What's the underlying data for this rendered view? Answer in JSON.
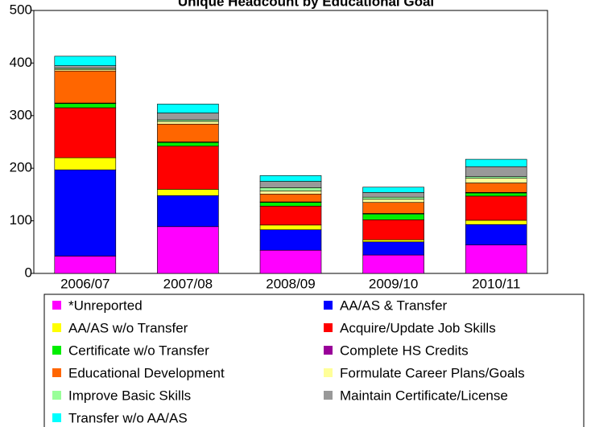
{
  "chart_data": {
    "type": "stacked_bar",
    "title": "Unique Headcount by Educational Goal",
    "categories": [
      "2006/07",
      "2007/08",
      "2008/09",
      "2009/10",
      "2010/11"
    ],
    "ylim": [
      0,
      500
    ],
    "yticks": [
      0,
      100,
      200,
      300,
      400,
      500
    ],
    "series": [
      {
        "name": "*Unreported",
        "color": "#ff00ff",
        "values": [
          33,
          89,
          44,
          35,
          54
        ]
      },
      {
        "name": "AA/AS & Transfer",
        "color": "#0000ff",
        "values": [
          164,
          59,
          39,
          25,
          39
        ]
      },
      {
        "name": "AA/AS w/o Transfer",
        "color": "#ffff00",
        "values": [
          23,
          12,
          9,
          4,
          8
        ]
      },
      {
        "name": "Acquire/Update Job Skills",
        "color": "#ff0000",
        "values": [
          95,
          82,
          36,
          38,
          46
        ]
      },
      {
        "name": "Certificate w/o Transfer",
        "color": "#00ee00",
        "values": [
          8,
          7,
          7,
          11,
          6
        ]
      },
      {
        "name": "Complete HS Credits",
        "color": "#990099",
        "values": [
          1,
          1,
          1,
          1,
          1
        ]
      },
      {
        "name": "Educational Development",
        "color": "#ff6600",
        "values": [
          61,
          34,
          15,
          21,
          18
        ]
      },
      {
        "name": "Formulate Career Plans/Goals",
        "color": "#ffff99",
        "values": [
          3,
          5,
          6,
          6,
          9
        ]
      },
      {
        "name": "Improve Basic Skills",
        "color": "#99ff99",
        "values": [
          2,
          3,
          6,
          4,
          3
        ]
      },
      {
        "name": "Maintain Certificate/License",
        "color": "#999999",
        "values": [
          5,
          13,
          12,
          9,
          19
        ]
      },
      {
        "name": "Transfer w/o AA/AS",
        "color": "#00ffff",
        "values": [
          18,
          17,
          11,
          10,
          14
        ]
      }
    ]
  }
}
